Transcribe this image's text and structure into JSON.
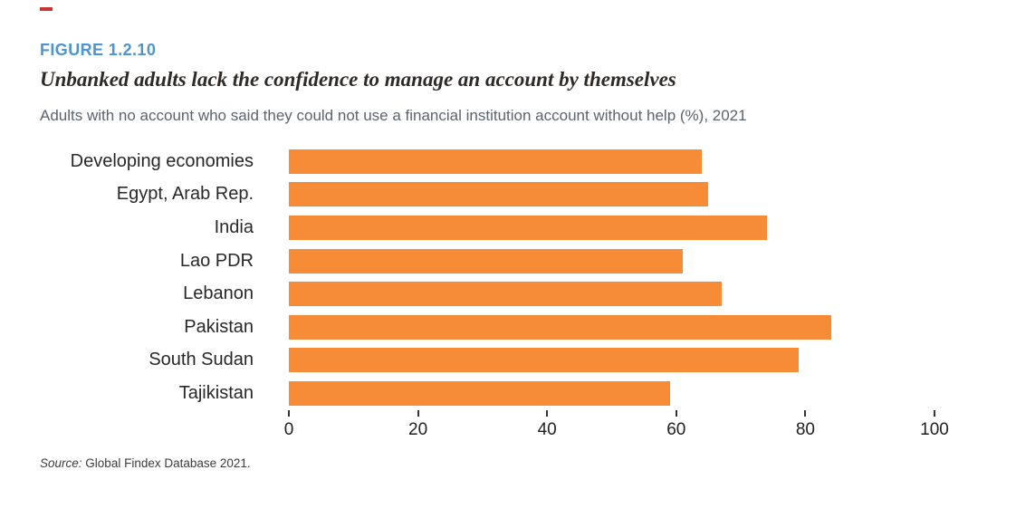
{
  "colors": {
    "accent_red": "#C9342C",
    "figure_label_blue": "#4E95CF",
    "bar_orange": "#F68B38",
    "title_ink": "#2D2A28",
    "subtitle_gray": "#5A646E",
    "label_ink": "#282828",
    "axis_ink": "#1F1F1F",
    "source_ink": "#3C3C3C"
  },
  "header": {
    "figure_label": "FIGURE 1.2.10",
    "title": "Unbanked adults lack the confidence to manage an account by themselves",
    "subtitle": "Adults with no account who said they could not use a financial institution account without help (%), 2021"
  },
  "chart_data": {
    "type": "bar",
    "orientation": "horizontal",
    "title": "Unbanked adults lack the confidence to manage an account by themselves",
    "subtitle": "Adults with no account who said they could not use a financial institution account without help (%), 2021",
    "categories": [
      "Developing economies",
      "Egypt, Arab Rep.",
      "India",
      "Lao PDR",
      "Lebanon",
      "Pakistan",
      "South Sudan",
      "Tajikistan"
    ],
    "values": [
      64,
      65,
      74,
      61,
      67,
      84,
      79,
      59
    ],
    "xlabel": "",
    "ylabel": "",
    "xlim": [
      0,
      100
    ],
    "x_ticks": [
      0,
      20,
      40,
      60,
      80,
      100
    ],
    "grid": false,
    "legend": false,
    "bar_color": "#F68B38"
  },
  "source": {
    "label": "Source:",
    "text": "Global Findex Database 2021."
  }
}
